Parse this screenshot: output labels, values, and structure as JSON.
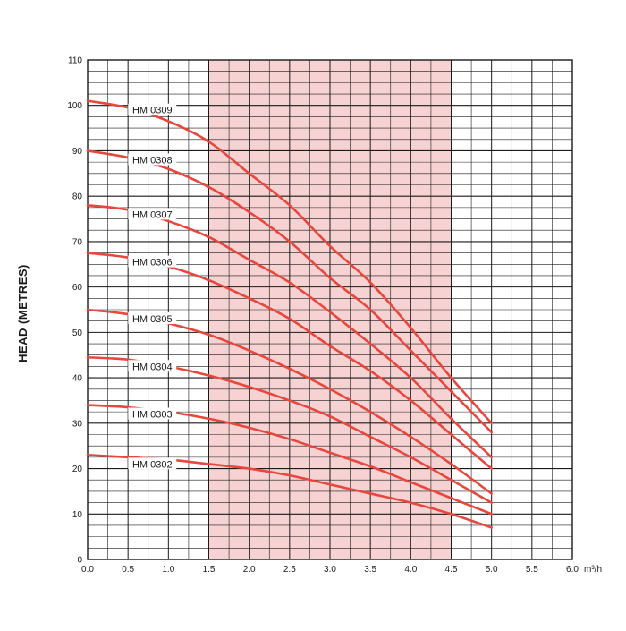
{
  "chart_data": {
    "type": "line",
    "title": "",
    "xlabel": "",
    "x_unit": "m³/h",
    "ylabel": "HEAD (METRES)",
    "xlim": [
      0,
      6
    ],
    "ylim": [
      0,
      110
    ],
    "x_ticks": [
      "0.0",
      "0.5",
      "1.0",
      "1.5",
      "2.0",
      "2.5",
      "3.0",
      "3.5",
      "4.0",
      "4.5",
      "5.0",
      "5.5",
      "6.0"
    ],
    "y_ticks": [
      "0",
      "10",
      "20",
      "30",
      "40",
      "50",
      "60",
      "70",
      "80",
      "90",
      "100",
      "110"
    ],
    "grid": true,
    "shaded_range": [
      1.5,
      4.5
    ],
    "colors": {
      "curve": "#e8473e",
      "shade": "#f6d2d2",
      "grid": "#1a1a1a"
    },
    "series": [
      {
        "name": "HM 0309",
        "x": [
          0,
          0.5,
          1.0,
          1.5,
          2.0,
          2.5,
          3.0,
          3.5,
          4.0,
          4.5,
          5.0
        ],
        "values": [
          101,
          99.5,
          96.5,
          92,
          85,
          78,
          69,
          61,
          51,
          40,
          30
        ]
      },
      {
        "name": "HM 0308",
        "x": [
          0,
          0.5,
          1.0,
          1.5,
          2.0,
          2.5,
          3.0,
          3.5,
          4.0,
          4.5,
          5.0
        ],
        "values": [
          90,
          88.5,
          86,
          82,
          76.5,
          70,
          62,
          55,
          46,
          37,
          28
        ]
      },
      {
        "name": "HM 0307",
        "x": [
          0,
          0.5,
          1.0,
          1.5,
          2.0,
          2.5,
          3.0,
          3.5,
          4.0,
          4.5,
          5.0
        ],
        "values": [
          78,
          77,
          74.5,
          71,
          66,
          61,
          54.5,
          47.5,
          40,
          31,
          22.5
        ]
      },
      {
        "name": "HM 0306",
        "x": [
          0,
          0.5,
          1.0,
          1.5,
          2.0,
          2.5,
          3.0,
          3.5,
          4.0,
          4.5,
          5.0
        ],
        "values": [
          67.5,
          66.5,
          64.5,
          61.5,
          57.5,
          53,
          47,
          41.5,
          35,
          27.5,
          20
        ]
      },
      {
        "name": "HM 0305",
        "x": [
          0,
          0.5,
          1.0,
          1.5,
          2.0,
          2.5,
          3.0,
          3.5,
          4.0,
          4.5,
          5.0
        ],
        "values": [
          55,
          54,
          52,
          49.5,
          46,
          42,
          37.5,
          32.5,
          27,
          21,
          14.5
        ]
      },
      {
        "name": "HM 0304",
        "x": [
          0,
          0.5,
          1.0,
          1.5,
          2.0,
          2.5,
          3.0,
          3.5,
          4.0,
          4.5,
          5.0
        ],
        "values": [
          44.5,
          44,
          42.5,
          40.5,
          38,
          35,
          31.5,
          27,
          22.5,
          17.5,
          12.5
        ]
      },
      {
        "name": "HM 0303",
        "x": [
          0,
          0.5,
          1.0,
          1.5,
          2.0,
          2.5,
          3.0,
          3.5,
          4.0,
          4.5,
          5.0
        ],
        "values": [
          34,
          33.5,
          32.5,
          31,
          29,
          26.5,
          23.5,
          20.5,
          17,
          13.5,
          10
        ]
      },
      {
        "name": "HM 0302",
        "x": [
          0,
          0.5,
          1.0,
          1.5,
          2.0,
          2.5,
          3.0,
          3.5,
          4.0,
          4.5,
          5.0
        ],
        "values": [
          23,
          22.5,
          22,
          21,
          20,
          18.5,
          16.5,
          14.5,
          12.5,
          10,
          7
        ]
      }
    ]
  }
}
